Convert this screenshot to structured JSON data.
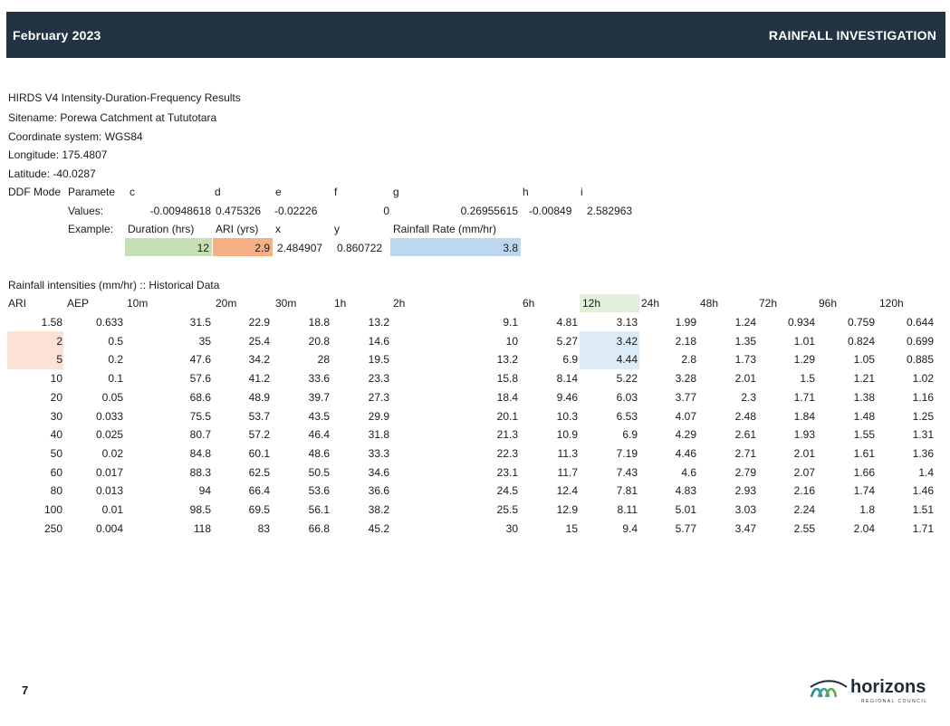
{
  "header": {
    "left": "February 2023",
    "right": "RAINFALL INVESTIGATION"
  },
  "info": [
    "HIRDS V4 Intensity-Duration-Frequency Results",
    "Sitename: Porewa Catchment at Tututotara",
    "Coordinate system: WGS84",
    "Longitude: 175.4807",
    "Latitude: -40.0287"
  ],
  "ddf": {
    "label": "DDF Mode",
    "param_label": "Paramete",
    "params": [
      "c",
      "d",
      "e",
      "f",
      "g",
      "h",
      "i"
    ],
    "values_label": "Values:",
    "values": [
      "-0.00948618",
      "0.475326",
      "-0.02226",
      "0",
      "0.26955615",
      "-0.00849",
      "2.582963"
    ],
    "example_label": "Example:",
    "example_headers": [
      "Duration (hrs)",
      "ARI (yrs)",
      "x",
      "y",
      "Rainfall Rate (mm/hr)"
    ],
    "example_values": [
      "12",
      "2.9",
      "2.484907",
      "0.860722",
      "3.8"
    ]
  },
  "intensities": {
    "title": "Rainfall intensities (mm/hr) :: Historical Data",
    "headers": [
      "ARI",
      "AEP",
      "10m",
      "20m",
      "30m",
      "1h",
      "2h",
      "6h",
      "12h",
      "24h",
      "48h",
      "72h",
      "96h",
      "120h"
    ],
    "rows": [
      [
        "1.58",
        "0.633",
        "31.5",
        "22.9",
        "18.8",
        "13.2",
        "9.1",
        "4.81",
        "3.13",
        "1.99",
        "1.24",
        "0.934",
        "0.759",
        "0.644"
      ],
      [
        "2",
        "0.5",
        "35",
        "25.4",
        "20.8",
        "14.6",
        "10",
        "5.27",
        "3.42",
        "2.18",
        "1.35",
        "1.01",
        "0.824",
        "0.699"
      ],
      [
        "5",
        "0.2",
        "47.6",
        "34.2",
        "28",
        "19.5",
        "13.2",
        "6.9",
        "4.44",
        "2.8",
        "1.73",
        "1.29",
        "1.05",
        "0.885"
      ],
      [
        "10",
        "0.1",
        "57.6",
        "41.2",
        "33.6",
        "23.3",
        "15.8",
        "8.14",
        "5.22",
        "3.28",
        "2.01",
        "1.5",
        "1.21",
        "1.02"
      ],
      [
        "20",
        "0.05",
        "68.6",
        "48.9",
        "39.7",
        "27.3",
        "18.4",
        "9.46",
        "6.03",
        "3.77",
        "2.3",
        "1.71",
        "1.38",
        "1.16"
      ],
      [
        "30",
        "0.033",
        "75.5",
        "53.7",
        "43.5",
        "29.9",
        "20.1",
        "10.3",
        "6.53",
        "4.07",
        "2.48",
        "1.84",
        "1.48",
        "1.25"
      ],
      [
        "40",
        "0.025",
        "80.7",
        "57.2",
        "46.4",
        "31.8",
        "21.3",
        "10.9",
        "6.9",
        "4.29",
        "2.61",
        "1.93",
        "1.55",
        "1.31"
      ],
      [
        "50",
        "0.02",
        "84.8",
        "60.1",
        "48.6",
        "33.3",
        "22.3",
        "11.3",
        "7.19",
        "4.46",
        "2.71",
        "2.01",
        "1.61",
        "1.36"
      ],
      [
        "60",
        "0.017",
        "88.3",
        "62.5",
        "50.5",
        "34.6",
        "23.1",
        "11.7",
        "7.43",
        "4.6",
        "2.79",
        "2.07",
        "1.66",
        "1.4"
      ],
      [
        "80",
        "0.013",
        "94",
        "66.4",
        "53.6",
        "36.6",
        "24.5",
        "12.4",
        "7.81",
        "4.83",
        "2.93",
        "2.16",
        "1.74",
        "1.46"
      ],
      [
        "100",
        "0.01",
        "98.5",
        "69.5",
        "56.1",
        "38.2",
        "25.5",
        "12.9",
        "8.11",
        "5.01",
        "3.03",
        "2.24",
        "1.8",
        "1.51"
      ],
      [
        "250",
        "0.004",
        "118",
        "83",
        "66.8",
        "45.2",
        "30",
        "15",
        "9.4",
        "5.77",
        "3.47",
        "2.55",
        "2.04",
        "1.71"
      ]
    ]
  },
  "highlight_colors": {
    "green": "#c6dfb4",
    "orange": "#f4b084",
    "blue": "#bdd7ee",
    "pink": "#fbe2d5",
    "light_green": "#e2efda",
    "light_blue": "#ddebf7"
  },
  "page_number": "7",
  "logo": {
    "word": "horizons",
    "sub": "REGIONAL COUNCIL",
    "icon": "horizons-waves-logo"
  }
}
